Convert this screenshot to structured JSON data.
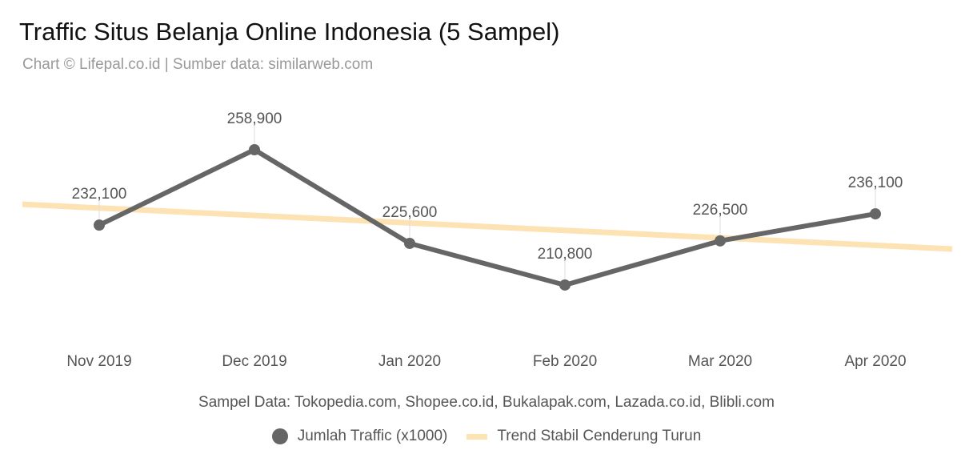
{
  "chart_data": {
    "type": "line",
    "title": "Traffic Situs Belanja Online Indonesia (5 Sampel)",
    "subtitle": "Chart © Lifepal.co.id | Sumber data: similarweb.com",
    "categories": [
      "Nov 2019",
      "Dec 2019",
      "Jan 2020",
      "Feb 2020",
      "Mar 2020",
      "Apr 2020"
    ],
    "series": [
      {
        "name": "Jumlah Traffic (x1000)",
        "values": [
          232100,
          258900,
          225600,
          210800,
          226500,
          236100
        ],
        "labels": [
          "232,100",
          "258,900",
          "225,600",
          "210,800",
          "226,500",
          "236,100"
        ],
        "color": "#666666"
      }
    ],
    "trend": {
      "name": "Trend Stabil Cenderung Turun",
      "start": 239500,
      "end": 223600,
      "color": "#fde2b4"
    },
    "note": "Sampel Data: Tokopedia.com, Shopee.co.id, Bukalapak.com, Lazada.co.id, Blibli.com",
    "legend_position": "bottom",
    "grid": false
  }
}
